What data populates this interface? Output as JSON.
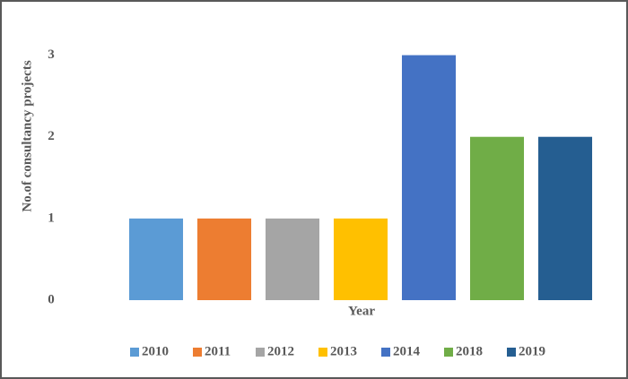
{
  "chart_data": {
    "type": "bar",
    "x_label": "Year",
    "y_label": "No.of consultancy projects",
    "categories": [
      null
    ],
    "series": [
      {
        "name": "2010",
        "color": "#5b9bd5",
        "values": [
          1
        ]
      },
      {
        "name": "2011",
        "color": "#ed7d31",
        "values": [
          1
        ]
      },
      {
        "name": "2012",
        "color": "#a5a5a5",
        "values": [
          1
        ]
      },
      {
        "name": "2013",
        "color": "#ffc000",
        "values": [
          1
        ]
      },
      {
        "name": "2014",
        "color": "#4472c4",
        "values": [
          3
        ]
      },
      {
        "name": "2018",
        "color": "#70ad47",
        "values": [
          2
        ]
      },
      {
        "name": "2019",
        "color": "#255e91",
        "values": [
          2
        ]
      }
    ],
    "ylim": [
      0,
      3.5
    ],
    "yticks": [
      0,
      1,
      2,
      3
    ],
    "grid": false,
    "legend": "bottom"
  }
}
